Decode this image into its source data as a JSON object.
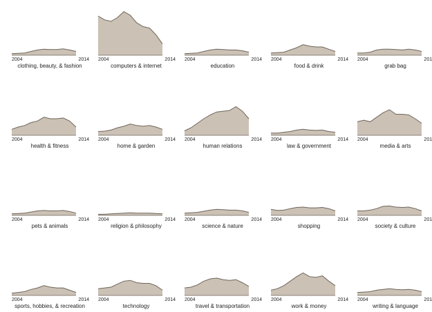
{
  "chart_data": {
    "type": "area",
    "layout": "small-multiples 5x4",
    "x_start_label": "2004",
    "x_end_label": "2014",
    "x": [
      2004,
      2005,
      2006,
      2007,
      2008,
      2009,
      2010,
      2011,
      2012,
      2013,
      2014
    ],
    "ylim": [
      0,
      55
    ],
    "fill_color": "#cbc1b4",
    "stroke_color": "#6e655c",
    "panels": [
      {
        "title": "clothing, beauty, & fashion",
        "values": [
          2,
          2.5,
          3,
          5,
          7,
          8,
          7.5,
          7.5,
          8.5,
          7,
          5
        ]
      },
      {
        "title": "computers & internet",
        "values": [
          52,
          47,
          45,
          50,
          58,
          53,
          43,
          38,
          36,
          27,
          15
        ]
      },
      {
        "title": "education",
        "values": [
          2,
          2.5,
          3,
          5,
          7,
          8,
          7.5,
          7,
          7,
          6,
          4
        ]
      },
      {
        "title": "food & drink",
        "values": [
          3,
          3.5,
          4,
          7,
          10,
          14,
          12,
          11,
          11,
          8,
          5
        ]
      },
      {
        "title": "grab bag",
        "values": [
          3,
          3,
          4,
          7,
          8,
          8,
          7.5,
          7,
          8,
          7,
          5
        ]
      },
      {
        "title": "health & fitness",
        "values": [
          8,
          11,
          13,
          17,
          19,
          24,
          22,
          22,
          23,
          19,
          11
        ]
      },
      {
        "title": "home & garden",
        "values": [
          5,
          5.5,
          7,
          10,
          12,
          15,
          13,
          12,
          13,
          11,
          8
        ]
      },
      {
        "title": "human relations",
        "values": [
          6,
          10,
          16,
          22,
          27,
          31,
          32,
          33,
          38,
          32,
          22
        ]
      },
      {
        "title": "law & government",
        "values": [
          3,
          3,
          4,
          5,
          7,
          8,
          7,
          6.5,
          7,
          5,
          4
        ]
      },
      {
        "title": "media & arts",
        "values": [
          18,
          20,
          18,
          24,
          30,
          34,
          28,
          28,
          27,
          22,
          16
        ]
      },
      {
        "title": "pets & animals",
        "values": [
          2,
          2.5,
          3,
          4.5,
          6,
          6.5,
          6,
          6,
          6.5,
          5,
          3
        ]
      },
      {
        "title": "religion & philosophy",
        "values": [
          1.5,
          1.5,
          2,
          2.5,
          3,
          3.5,
          3,
          3,
          3,
          2.5,
          2
        ]
      },
      {
        "title": "science & nature",
        "values": [
          3,
          3.5,
          4,
          5.5,
          7,
          8,
          7.5,
          7,
          7,
          6,
          4
        ]
      },
      {
        "title": "shopping",
        "values": [
          8,
          6.5,
          7,
          9,
          10.5,
          11,
          10,
          10,
          10.5,
          9,
          6
        ]
      },
      {
        "title": "society & culture",
        "values": [
          6,
          6,
          7,
          9,
          12,
          12.5,
          11,
          10.5,
          11,
          9,
          6
        ]
      },
      {
        "title": "sports, hobbies, & recreation",
        "values": [
          3,
          4,
          5,
          8,
          10,
          13,
          11,
          10,
          10,
          7,
          4
        ]
      },
      {
        "title": "technology",
        "values": [
          9,
          10,
          11,
          15,
          19,
          20,
          17,
          16,
          16,
          13,
          7
        ]
      },
      {
        "title": "travel & transportation",
        "values": [
          10,
          11,
          14,
          19,
          22,
          23,
          21,
          20,
          21,
          17,
          12
        ]
      },
      {
        "title": "work & money",
        "values": [
          7,
          9,
          13,
          19,
          25,
          30,
          25,
          24,
          26,
          19,
          13
        ]
      },
      {
        "title": "writing & language",
        "values": [
          4,
          4.5,
          5,
          7,
          8,
          9,
          8,
          7.5,
          8,
          7,
          5
        ]
      }
    ]
  }
}
